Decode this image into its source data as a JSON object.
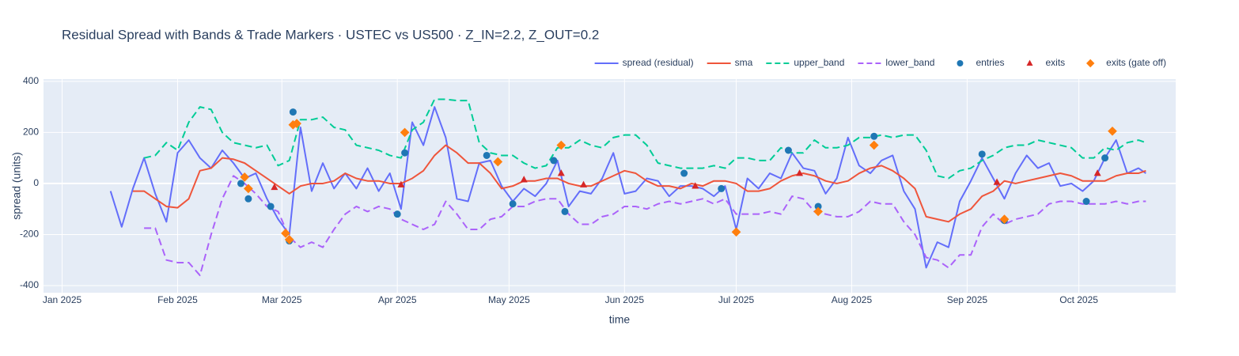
{
  "chart_data": {
    "type": "line",
    "title": "Residual Spread with Bands & Trade Markers · USTEC vs US500 · Z_IN=2.2, Z_OUT=0.2",
    "x_label": "time",
    "y_label": "spread (units)",
    "xlim": [
      "2024-12-27",
      "2025-10-27"
    ],
    "ylim": [
      -428,
      409
    ],
    "xticks": [
      {
        "value": "2025-01-01",
        "label": "Jan 2025"
      },
      {
        "value": "2025-02-01",
        "label": "Feb 2025"
      },
      {
        "value": "2025-03-01",
        "label": "Mar 2025"
      },
      {
        "value": "2025-04-01",
        "label": "Apr 2025"
      },
      {
        "value": "2025-05-01",
        "label": "May 2025"
      },
      {
        "value": "2025-06-01",
        "label": "Jun 2025"
      },
      {
        "value": "2025-07-01",
        "label": "Jul 2025"
      },
      {
        "value": "2025-08-01",
        "label": "Aug 2025"
      },
      {
        "value": "2025-09-01",
        "label": "Sep 2025"
      },
      {
        "value": "2025-10-01",
        "label": "Oct 2025"
      }
    ],
    "yticks": [
      -400,
      -200,
      0,
      200,
      400
    ],
    "grid": true,
    "legend": "top-right",
    "x": [
      "2025-01-14",
      "2025-01-17",
      "2025-01-20",
      "2025-01-23",
      "2025-01-26",
      "2025-01-29",
      "2025-02-01",
      "2025-02-04",
      "2025-02-07",
      "2025-02-10",
      "2025-02-13",
      "2025-02-16",
      "2025-02-19",
      "2025-02-22",
      "2025-02-25",
      "2025-02-28",
      "2025-03-03",
      "2025-03-06",
      "2025-03-09",
      "2025-03-12",
      "2025-03-15",
      "2025-03-18",
      "2025-03-21",
      "2025-03-24",
      "2025-03-27",
      "2025-03-30",
      "2025-04-02",
      "2025-04-05",
      "2025-04-08",
      "2025-04-11",
      "2025-04-14",
      "2025-04-17",
      "2025-04-20",
      "2025-04-23",
      "2025-04-26",
      "2025-04-29",
      "2025-05-02",
      "2025-05-05",
      "2025-05-08",
      "2025-05-11",
      "2025-05-14",
      "2025-05-17",
      "2025-05-20",
      "2025-05-23",
      "2025-05-26",
      "2025-05-29",
      "2025-06-01",
      "2025-06-04",
      "2025-06-07",
      "2025-06-10",
      "2025-06-13",
      "2025-06-16",
      "2025-06-19",
      "2025-06-22",
      "2025-06-25",
      "2025-06-28",
      "2025-07-01",
      "2025-07-04",
      "2025-07-07",
      "2025-07-10",
      "2025-07-13",
      "2025-07-16",
      "2025-07-19",
      "2025-07-22",
      "2025-07-25",
      "2025-07-28",
      "2025-07-31",
      "2025-08-03",
      "2025-08-06",
      "2025-08-09",
      "2025-08-12",
      "2025-08-15",
      "2025-08-18",
      "2025-08-21",
      "2025-08-24",
      "2025-08-27",
      "2025-08-30",
      "2025-09-02",
      "2025-09-05",
      "2025-09-08",
      "2025-09-11",
      "2025-09-14",
      "2025-09-17",
      "2025-09-20",
      "2025-09-23",
      "2025-09-26",
      "2025-09-29",
      "2025-10-02",
      "2025-10-05",
      "2025-10-08",
      "2025-10-11",
      "2025-10-14",
      "2025-10-17",
      "2025-10-19"
    ],
    "series": [
      {
        "name": "spread (residual)",
        "color": "#636efa",
        "mode": "lines",
        "values": [
          -30,
          -170,
          -20,
          100,
          -40,
          -150,
          120,
          170,
          100,
          60,
          130,
          80,
          20,
          40,
          -60,
          -140,
          -200,
          220,
          -30,
          80,
          -20,
          40,
          -20,
          60,
          -30,
          40,
          -100,
          240,
          150,
          300,
          180,
          -60,
          -70,
          80,
          90,
          -10,
          -70,
          -20,
          -50,
          0,
          90,
          -90,
          -30,
          -40,
          20,
          120,
          -40,
          -30,
          20,
          10,
          -50,
          -10,
          -10,
          -20,
          -50,
          -10,
          -180,
          20,
          -20,
          40,
          20,
          120,
          60,
          50,
          -40,
          20,
          180,
          70,
          40,
          90,
          110,
          -30,
          -100,
          -330,
          -230,
          -250,
          -70,
          10,
          100,
          20,
          -60,
          40,
          110,
          60,
          80,
          -10,
          0,
          -30,
          10,
          100,
          170,
          40,
          60,
          40
        ]
      },
      {
        "name": "sma",
        "color": "#ef553b",
        "mode": "lines",
        "values": [
          null,
          null,
          -30,
          -30,
          -60,
          -90,
          -95,
          -60,
          50,
          60,
          100,
          95,
          80,
          50,
          20,
          -10,
          -40,
          -10,
          0,
          0,
          10,
          40,
          20,
          10,
          10,
          0,
          0,
          20,
          50,
          110,
          150,
          120,
          80,
          80,
          40,
          -20,
          -10,
          10,
          10,
          20,
          20,
          0,
          -10,
          -10,
          10,
          30,
          50,
          40,
          10,
          -10,
          -10,
          -20,
          0,
          -10,
          10,
          10,
          0,
          -30,
          -30,
          -20,
          10,
          30,
          40,
          30,
          10,
          0,
          10,
          40,
          60,
          70,
          50,
          20,
          -20,
          -130,
          -140,
          -150,
          -120,
          -100,
          -50,
          -30,
          10,
          0,
          10,
          20,
          30,
          40,
          30,
          10,
          10,
          10,
          30,
          40,
          40,
          50
        ]
      },
      {
        "name": "upper_band",
        "color": "#00cc96",
        "mode": "lines",
        "dash": true,
        "values": [
          null,
          null,
          null,
          100,
          110,
          160,
          130,
          240,
          300,
          290,
          200,
          160,
          150,
          140,
          150,
          70,
          90,
          250,
          250,
          260,
          220,
          210,
          150,
          140,
          130,
          110,
          100,
          210,
          240,
          330,
          330,
          325,
          325,
          160,
          120,
          110,
          110,
          80,
          60,
          70,
          140,
          140,
          170,
          150,
          140,
          180,
          190,
          190,
          150,
          80,
          70,
          60,
          60,
          60,
          70,
          60,
          100,
          100,
          90,
          90,
          140,
          120,
          120,
          170,
          140,
          140,
          150,
          180,
          180,
          190,
          180,
          190,
          190,
          130,
          30,
          20,
          50,
          60,
          90,
          110,
          140,
          150,
          150,
          170,
          160,
          150,
          140,
          100,
          100,
          140,
          130,
          160,
          170,
          160
        ]
      },
      {
        "name": "lower_band",
        "color": "#ab63fa",
        "mode": "lines",
        "dash": true,
        "values": [
          null,
          null,
          null,
          -175,
          -175,
          -300,
          -310,
          -310,
          -360,
          -200,
          -60,
          30,
          0,
          -40,
          -90,
          -110,
          -210,
          -250,
          -230,
          -250,
          -180,
          -120,
          -90,
          -110,
          -90,
          -100,
          -140,
          -160,
          -180,
          -160,
          -70,
          -120,
          -180,
          -180,
          -140,
          -130,
          -90,
          -90,
          -70,
          -60,
          -60,
          -120,
          -160,
          -160,
          -130,
          -120,
          -90,
          -90,
          -100,
          -80,
          -70,
          -80,
          -70,
          -60,
          -80,
          -60,
          -120,
          -120,
          -120,
          -110,
          -120,
          -50,
          -60,
          -110,
          -120,
          -130,
          -130,
          -110,
          -70,
          -80,
          -80,
          -150,
          -200,
          -290,
          -300,
          -330,
          -280,
          -280,
          -170,
          -120,
          -160,
          -140,
          -130,
          -120,
          -80,
          -70,
          -70,
          -80,
          -80,
          -80,
          -70,
          -80,
          -70,
          -70
        ]
      },
      {
        "name": "entries",
        "color": "#1f77b4",
        "mode": "markers",
        "symbol": "circle",
        "x": [
          "2025-02-18",
          "2025-02-20",
          "2025-02-26",
          "2025-03-03",
          "2025-03-04",
          "2025-04-01",
          "2025-04-03",
          "2025-04-25",
          "2025-05-02",
          "2025-05-13",
          "2025-05-16",
          "2025-06-17",
          "2025-06-27",
          "2025-07-15",
          "2025-07-23",
          "2025-08-07",
          "2025-09-05",
          "2025-09-11",
          "2025-10-03",
          "2025-10-08"
        ],
        "values": [
          0,
          -60,
          -90,
          -225,
          280,
          -120,
          120,
          110,
          -80,
          90,
          -110,
          40,
          -20,
          130,
          -90,
          185,
          115,
          -145,
          -70,
          100
        ]
      },
      {
        "name": "exits",
        "color": "#d62728",
        "mode": "markers",
        "symbol": "triangle",
        "x": [
          "2025-02-27",
          "2025-04-02",
          "2025-05-05",
          "2025-05-15",
          "2025-05-21",
          "2025-06-20",
          "2025-07-18",
          "2025-09-09",
          "2025-10-06"
        ],
        "values": [
          -15,
          -5,
          15,
          40,
          -5,
          -10,
          40,
          5,
          40
        ]
      },
      {
        "name": "exits (gate off)",
        "color": "#ff7f0e",
        "mode": "markers",
        "symbol": "diamond",
        "x": [
          "2025-02-19",
          "2025-02-20",
          "2025-03-02",
          "2025-03-03",
          "2025-03-04",
          "2025-03-05",
          "2025-04-03",
          "2025-04-28",
          "2025-05-15",
          "2025-07-01",
          "2025-07-23",
          "2025-08-07",
          "2025-09-11",
          "2025-10-10"
        ],
        "values": [
          25,
          -20,
          -195,
          -220,
          230,
          235,
          200,
          85,
          150,
          -190,
          -110,
          150,
          -140,
          205
        ]
      }
    ]
  }
}
